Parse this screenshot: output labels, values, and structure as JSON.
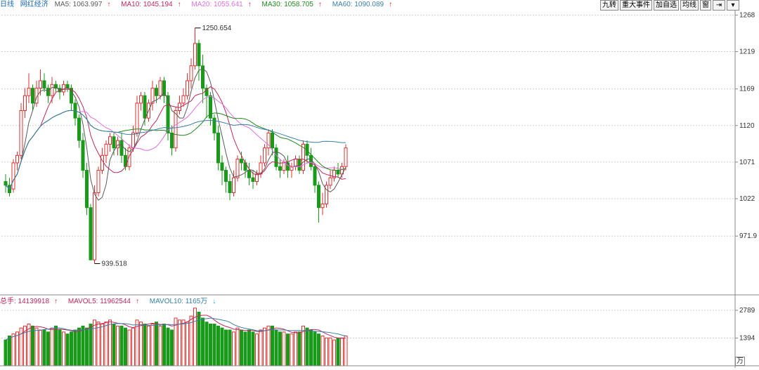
{
  "legend": {
    "period": "日线",
    "stock_name": "网红经济",
    "ma5": {
      "label": "MA5: 1063.997",
      "color": "#5a5a5a"
    },
    "ma10": {
      "label": "MA10: 1045.194",
      "color": "#c0285a"
    },
    "ma20": {
      "label": "MA20: 1055.641",
      "color": "#e070e0"
    },
    "ma30": {
      "label": "MA30: 1058.705",
      "color": "#208a20"
    },
    "ma60": {
      "label": "MA60: 1090.089",
      "color": "#3a80a8"
    }
  },
  "toolbar": {
    "items": [
      "九转",
      "重大事件",
      "加自选",
      "均线",
      "窗"
    ],
    "icons": [
      "arrow-right-icon",
      "chevron-down-icon"
    ]
  },
  "price_axis": {
    "ticks": [
      "1268",
      "1219",
      "1169",
      "1120",
      "1071",
      "1022",
      "971.9"
    ]
  },
  "annotations": {
    "high": "1250.654",
    "low": "939.518"
  },
  "volume_legend": {
    "total": "总手: 14139918",
    "mavol5": "MAVOL5: 11962544",
    "mavol10": "MAVOL10: 1165万"
  },
  "volume_axis": {
    "ticks": [
      "2789",
      "1394"
    ],
    "unit": "万"
  },
  "colors": {
    "up": "#e03030",
    "down": "#1a9a1a",
    "grid": "#d0d0d0",
    "axis_text": "#333333"
  },
  "chart_data": {
    "type": "candlestick",
    "candles": [
      [
        1045,
        1040,
        1055,
        1030
      ],
      [
        1040,
        1030,
        1050,
        1025
      ],
      [
        1035,
        1070,
        1075,
        1030
      ],
      [
        1070,
        1080,
        1085,
        1060
      ],
      [
        1080,
        1140,
        1150,
        1075
      ],
      [
        1140,
        1160,
        1170,
        1130
      ],
      [
        1160,
        1170,
        1190,
        1150
      ],
      [
        1170,
        1150,
        1175,
        1140
      ],
      [
        1150,
        1170,
        1180,
        1145
      ],
      [
        1170,
        1180,
        1195,
        1160
      ],
      [
        1180,
        1170,
        1190,
        1165
      ],
      [
        1170,
        1160,
        1175,
        1150
      ],
      [
        1160,
        1175,
        1185,
        1150
      ],
      [
        1175,
        1170,
        1180,
        1165
      ],
      [
        1170,
        1165,
        1175,
        1155
      ],
      [
        1165,
        1175,
        1180,
        1160
      ],
      [
        1175,
        1170,
        1180,
        1165
      ],
      [
        1170,
        1150,
        1175,
        1140
      ],
      [
        1150,
        1130,
        1155,
        1120
      ],
      [
        1130,
        1100,
        1135,
        1090
      ],
      [
        1100,
        1060,
        1110,
        1050
      ],
      [
        1060,
        1010,
        1070,
        1000
      ],
      [
        1010,
        940,
        1015,
        939.5
      ],
      [
        940,
        1030,
        1040,
        935
      ],
      [
        1030,
        1060,
        1065,
        1025
      ],
      [
        1060,
        1080,
        1090,
        1055
      ],
      [
        1080,
        1095,
        1100,
        1070
      ],
      [
        1095,
        1105,
        1110,
        1085
      ],
      [
        1105,
        1090,
        1110,
        1080
      ],
      [
        1090,
        1100,
        1105,
        1080
      ],
      [
        1100,
        1080,
        1110,
        1070
      ],
      [
        1080,
        1065,
        1090,
        1060
      ],
      [
        1065,
        1090,
        1095,
        1060
      ],
      [
        1090,
        1110,
        1120,
        1085
      ],
      [
        1110,
        1150,
        1160,
        1105
      ],
      [
        1150,
        1160,
        1165,
        1140
      ],
      [
        1160,
        1130,
        1165,
        1120
      ],
      [
        1130,
        1150,
        1155,
        1125
      ],
      [
        1150,
        1170,
        1180,
        1140
      ],
      [
        1170,
        1160,
        1175,
        1150
      ],
      [
        1160,
        1180,
        1185,
        1155
      ],
      [
        1180,
        1160,
        1185,
        1150
      ],
      [
        1160,
        1110,
        1165,
        1100
      ],
      [
        1110,
        1090,
        1120,
        1080
      ],
      [
        1090,
        1140,
        1145,
        1085
      ],
      [
        1140,
        1150,
        1160,
        1135
      ],
      [
        1150,
        1160,
        1170,
        1145
      ],
      [
        1160,
        1180,
        1190,
        1155
      ],
      [
        1180,
        1200,
        1210,
        1170
      ],
      [
        1200,
        1230,
        1250.7,
        1195
      ],
      [
        1230,
        1200,
        1235,
        1180
      ],
      [
        1200,
        1170,
        1215,
        1150
      ],
      [
        1170,
        1160,
        1175,
        1130
      ],
      [
        1160,
        1130,
        1165,
        1120
      ],
      [
        1130,
        1110,
        1135,
        1100
      ],
      [
        1110,
        1070,
        1120,
        1060
      ],
      [
        1070,
        1060,
        1080,
        1040
      ],
      [
        1060,
        1045,
        1065,
        1030
      ],
      [
        1045,
        1030,
        1055,
        1020
      ],
      [
        1030,
        1050,
        1060,
        1025
      ],
      [
        1050,
        1075,
        1080,
        1045
      ],
      [
        1075,
        1070,
        1085,
        1060
      ],
      [
        1070,
        1060,
        1075,
        1050
      ],
      [
        1060,
        1050,
        1070,
        1040
      ],
      [
        1050,
        1045,
        1060,
        1035
      ],
      [
        1045,
        1055,
        1060,
        1040
      ],
      [
        1055,
        1070,
        1080,
        1050
      ],
      [
        1070,
        1090,
        1095,
        1065
      ],
      [
        1090,
        1110,
        1115,
        1080
      ],
      [
        1110,
        1090,
        1115,
        1080
      ],
      [
        1090,
        1065,
        1095,
        1060
      ],
      [
        1065,
        1060,
        1075,
        1050
      ],
      [
        1060,
        1070,
        1075,
        1055
      ],
      [
        1070,
        1060,
        1080,
        1050
      ],
      [
        1060,
        1065,
        1070,
        1050
      ],
      [
        1065,
        1075,
        1080,
        1060
      ],
      [
        1075,
        1060,
        1080,
        1055
      ],
      [
        1060,
        1095,
        1100,
        1055
      ],
      [
        1095,
        1080,
        1100,
        1070
      ],
      [
        1080,
        1065,
        1090,
        1060
      ],
      [
        1065,
        1040,
        1070,
        1030
      ],
      [
        1040,
        1010,
        1045,
        990
      ],
      [
        1010,
        1015,
        1030,
        1000
      ],
      [
        1015,
        1040,
        1045,
        1010
      ],
      [
        1040,
        1050,
        1060,
        1035
      ],
      [
        1050,
        1060,
        1065,
        1045
      ],
      [
        1060,
        1055,
        1070,
        1050
      ],
      [
        1055,
        1065,
        1070,
        1050
      ],
      [
        1065,
        1090,
        1095,
        1060
      ]
    ],
    "volumes": [
      1300,
      1500,
      1600,
      1700,
      1900,
      2000,
      2100,
      2000,
      1900,
      1800,
      1800,
      1700,
      1900,
      2000,
      1800,
      1700,
      1600,
      1700,
      1800,
      1900,
      2000,
      1900,
      2100,
      2300,
      2200,
      2100,
      2200,
      2300,
      2100,
      2000,
      2000,
      1900,
      1800,
      1900,
      2300,
      2200,
      2100,
      2000,
      2100,
      2200,
      2000,
      2100,
      1900,
      1800,
      2400,
      2300,
      2300,
      2200,
      2500,
      2900,
      2700,
      2400,
      2200,
      2100,
      2100,
      2000,
      1900,
      1800,
      1800,
      1700,
      1900,
      1800,
      1700,
      1800,
      1700,
      1600,
      1800,
      1900,
      2000,
      2000,
      1800,
      1700,
      1700,
      1600,
      1600,
      1700,
      1700,
      2000,
      1900,
      1800,
      1700,
      1600,
      1500,
      1400,
      1400,
      1300,
      1400,
      1400,
      1500
    ]
  }
}
